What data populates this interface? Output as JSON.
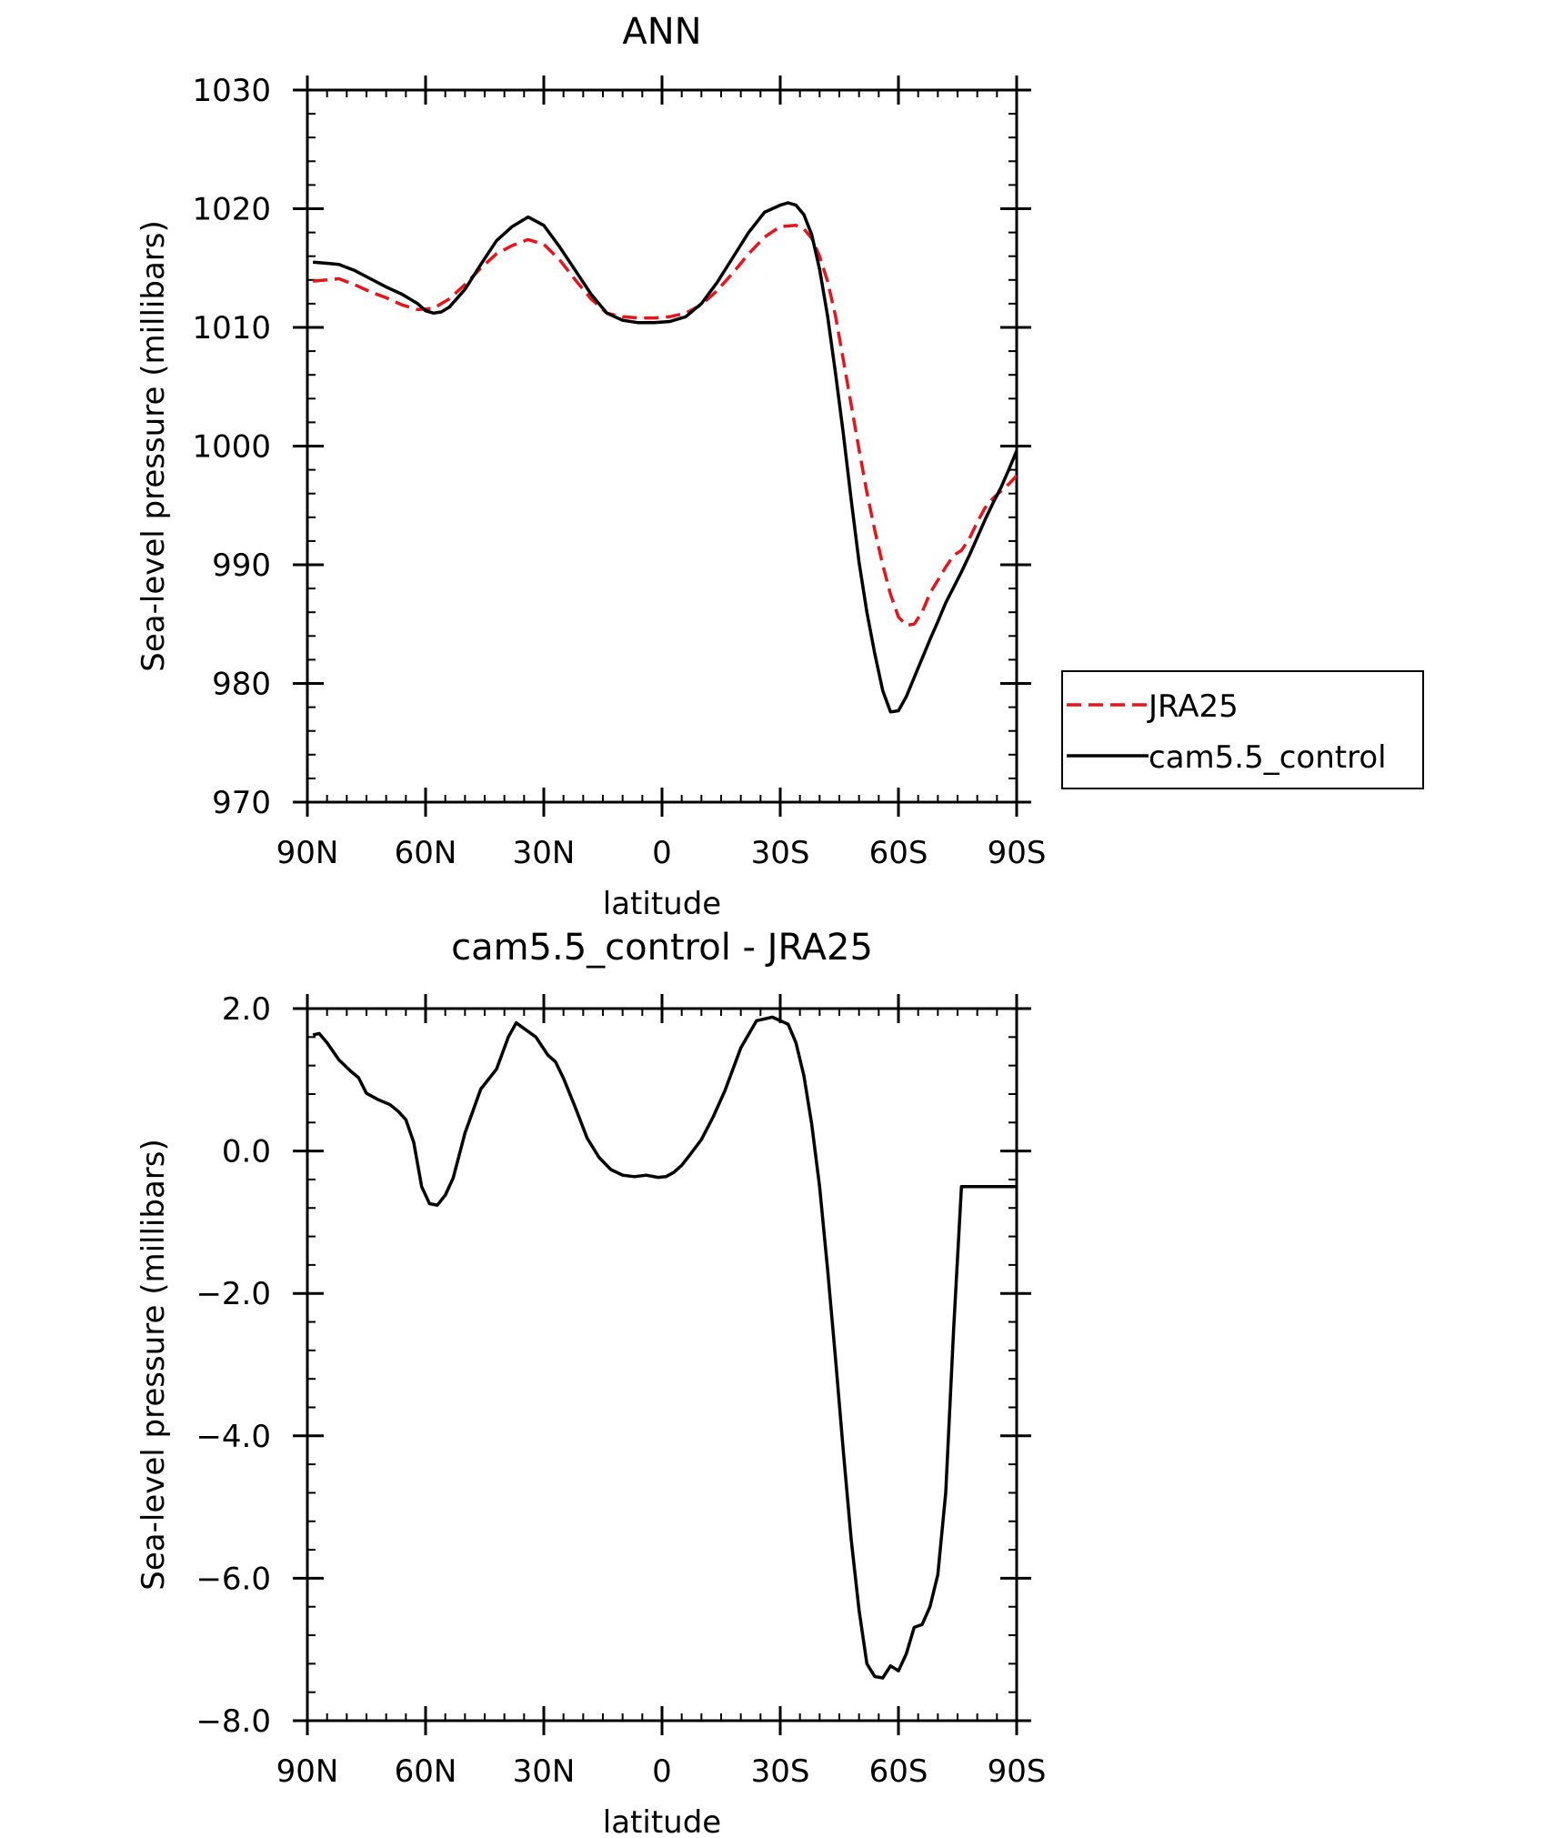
{
  "chart_data": [
    {
      "type": "line",
      "title": "ANN",
      "xlabel": "latitude",
      "ylabel": "Sea-level pressure (millibars)",
      "xlim": [
        90,
        -90
      ],
      "ylim": [
        970,
        1030
      ],
      "xticks": [
        {
          "value": 90,
          "label": "90N"
        },
        {
          "value": 60,
          "label": "60N"
        },
        {
          "value": 30,
          "label": "30N"
        },
        {
          "value": 0,
          "label": "0"
        },
        {
          "value": -30,
          "label": "30S"
        },
        {
          "value": -60,
          "label": "60S"
        },
        {
          "value": -90,
          "label": "90S"
        }
      ],
      "yticks": [
        {
          "value": 1030,
          "label": "1030"
        },
        {
          "value": 1020,
          "label": "1020"
        },
        {
          "value": 1010,
          "label": "1010"
        },
        {
          "value": 1000,
          "label": "1000"
        },
        {
          "value": 990,
          "label": "990"
        },
        {
          "value": 980,
          "label": "980"
        },
        {
          "value": 970,
          "label": "970"
        }
      ],
      "legend_position": "right",
      "series": [
        {
          "name": "JRA25",
          "color": "#e8141c",
          "dashed": true,
          "x": [
            88.6,
            85,
            82,
            78,
            74,
            70,
            66,
            62,
            58,
            54,
            50,
            46,
            42,
            38,
            34,
            30,
            26,
            22,
            18,
            14,
            10,
            6,
            2,
            -2,
            -6,
            -10,
            -14,
            -18,
            -22,
            -26,
            -30,
            -34,
            -36,
            -38,
            -40,
            -42,
            -44,
            -46,
            -48,
            -50,
            -52,
            -54,
            -56,
            -58,
            -60,
            -62,
            -64,
            -66,
            -68,
            -70,
            -72,
            -74,
            -76,
            -78,
            -80,
            -82,
            -84,
            -86,
            -88,
            -90
          ],
          "y": [
            1013.9,
            1014.0,
            1014.1,
            1013.6,
            1013.0,
            1012.5,
            1011.9,
            1011.5,
            1011.6,
            1012.4,
            1013.6,
            1015.0,
            1016.2,
            1016.9,
            1017.4,
            1017.0,
            1015.7,
            1014.0,
            1012.4,
            1011.2,
            1010.9,
            1010.8,
            1010.8,
            1010.9,
            1011.2,
            1011.9,
            1013.1,
            1014.6,
            1016.2,
            1017.6,
            1018.5,
            1018.6,
            1018.3,
            1017.5,
            1016.0,
            1013.9,
            1011.0,
            1007.3,
            1003.5,
            999.7,
            996.1,
            992.9,
            990.0,
            987.5,
            985.6,
            984.9,
            985.0,
            986.0,
            987.6,
            988.7,
            989.8,
            990.8,
            991.2,
            992.2,
            993.6,
            994.8,
            995.6,
            996.2,
            996.8,
            997.5
          ]
        },
        {
          "name": "cam5.5_control",
          "color": "#000000",
          "dashed": false,
          "x": [
            88.6,
            85,
            82,
            78,
            74,
            70,
            66,
            62,
            60,
            58,
            56,
            54,
            50,
            46,
            42,
            38,
            34,
            30,
            26,
            22,
            18,
            14,
            10,
            6,
            2,
            -2,
            -6,
            -10,
            -14,
            -18,
            -22,
            -26,
            -30,
            -32,
            -34,
            -36,
            -38,
            -40,
            -42,
            -44,
            -46,
            -48,
            -50,
            -52,
            -54,
            -56,
            -58,
            -60,
            -62,
            -64,
            -66,
            -68,
            -70,
            -72,
            -74,
            -76,
            -78,
            -80,
            -82,
            -84,
            -86,
            -88,
            -90
          ],
          "y": [
            1015.5,
            1015.4,
            1015.3,
            1014.8,
            1014.1,
            1013.4,
            1012.8,
            1012.0,
            1011.4,
            1011.2,
            1011.3,
            1011.7,
            1013.2,
            1015.3,
            1017.3,
            1018.5,
            1019.3,
            1018.6,
            1016.8,
            1014.8,
            1012.8,
            1011.2,
            1010.6,
            1010.4,
            1010.4,
            1010.5,
            1010.9,
            1012.0,
            1013.8,
            1015.9,
            1018.0,
            1019.7,
            1020.3,
            1020.5,
            1020.3,
            1019.5,
            1017.8,
            1014.9,
            1011.0,
            1006.2,
            1001.1,
            995.5,
            990.2,
            986.0,
            982.5,
            979.4,
            977.6,
            977.7,
            978.9,
            980.5,
            982.1,
            983.7,
            985.2,
            986.8,
            988.1,
            989.4,
            990.8,
            992.3,
            993.8,
            995.2,
            996.5,
            998.0,
            999.6
          ]
        }
      ]
    },
    {
      "type": "line",
      "title": "cam5.5_control - JRA25",
      "xlabel": "latitude",
      "ylabel": "Sea-level pressure (millibars)",
      "xlim": [
        90,
        -90
      ],
      "ylim": [
        -8.0,
        2.0
      ],
      "xticks": [
        {
          "value": 90,
          "label": "90N"
        },
        {
          "value": 60,
          "label": "60N"
        },
        {
          "value": 30,
          "label": "30N"
        },
        {
          "value": 0,
          "label": "0"
        },
        {
          "value": -30,
          "label": "30S"
        },
        {
          "value": -60,
          "label": "60S"
        },
        {
          "value": -90,
          "label": "90S"
        }
      ],
      "yticks": [
        {
          "value": 2.0,
          "label": "2.0"
        },
        {
          "value": 0.0,
          "label": "0.0"
        },
        {
          "value": -2.0,
          "label": "−2.0"
        },
        {
          "value": -4.0,
          "label": "−4.0"
        },
        {
          "value": -6.0,
          "label": "−6.0"
        },
        {
          "value": -8.0,
          "label": "−8.0"
        }
      ],
      "series": [
        {
          "name": "",
          "color": "#000000",
          "dashed": false,
          "x": [
            88.6,
            87,
            85,
            82,
            79,
            77,
            75,
            72,
            69,
            67,
            65,
            63,
            61,
            59,
            57,
            55,
            53,
            50,
            46,
            42,
            39,
            37,
            35,
            32,
            29,
            27,
            25,
            22,
            19,
            16,
            13,
            10,
            7,
            4,
            1,
            -1,
            -3,
            -5,
            -7,
            -10,
            -13,
            -16,
            -20,
            -24,
            -28,
            -32,
            -34,
            -36,
            -38,
            -40,
            -42,
            -44,
            -46,
            -48,
            -50,
            -52,
            -54,
            -56,
            -58,
            -60,
            -62,
            -64,
            -66,
            -68,
            -70,
            -72,
            -74,
            -76,
            -78,
            -80,
            -82,
            -84,
            -86,
            -88,
            -90
          ],
          "y": [
            1.63,
            1.65,
            1.52,
            1.28,
            1.12,
            1.03,
            0.81,
            0.72,
            0.65,
            0.56,
            0.44,
            0.12,
            -0.5,
            -0.74,
            -0.76,
            -0.62,
            -0.38,
            0.25,
            0.87,
            1.15,
            1.6,
            1.8,
            1.72,
            1.6,
            1.35,
            1.25,
            1.02,
            0.61,
            0.18,
            -0.09,
            -0.26,
            -0.34,
            -0.36,
            -0.34,
            -0.37,
            -0.36,
            -0.3,
            -0.2,
            -0.06,
            0.16,
            0.48,
            0.85,
            1.45,
            1.83,
            1.88,
            1.78,
            1.52,
            1.06,
            0.37,
            -0.5,
            -1.65,
            -2.9,
            -4.2,
            -5.45,
            -6.45,
            -7.2,
            -7.38,
            -7.4,
            -7.23,
            -7.3,
            -7.06,
            -6.69,
            -6.65,
            -6.4,
            -5.95,
            -4.8,
            -2.5,
            -0.5,
            -0.5,
            -0.5,
            -0.5,
            -0.5,
            -0.5,
            -0.5,
            -0.5
          ]
        }
      ]
    }
  ]
}
